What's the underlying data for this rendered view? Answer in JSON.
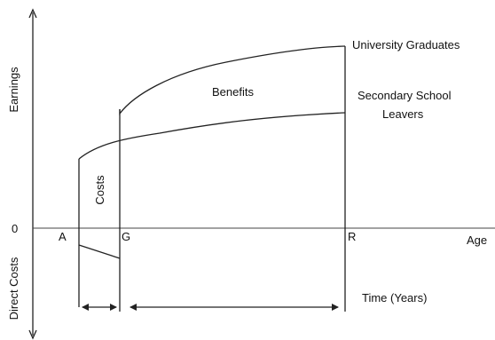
{
  "axes": {
    "y_top_label": "Earnings",
    "y_bottom_label": "Direct Costs",
    "zero_label": "0",
    "x_label": "Age"
  },
  "points": {
    "a": "A",
    "g": "G",
    "r": "R"
  },
  "curves": {
    "graduates": "University Graduates",
    "leavers_line1": "Secondary School",
    "leavers_line2": "Leavers"
  },
  "regions": {
    "benefits": "Benefits",
    "costs": "Costs"
  },
  "time_label": "Time (Years)"
}
